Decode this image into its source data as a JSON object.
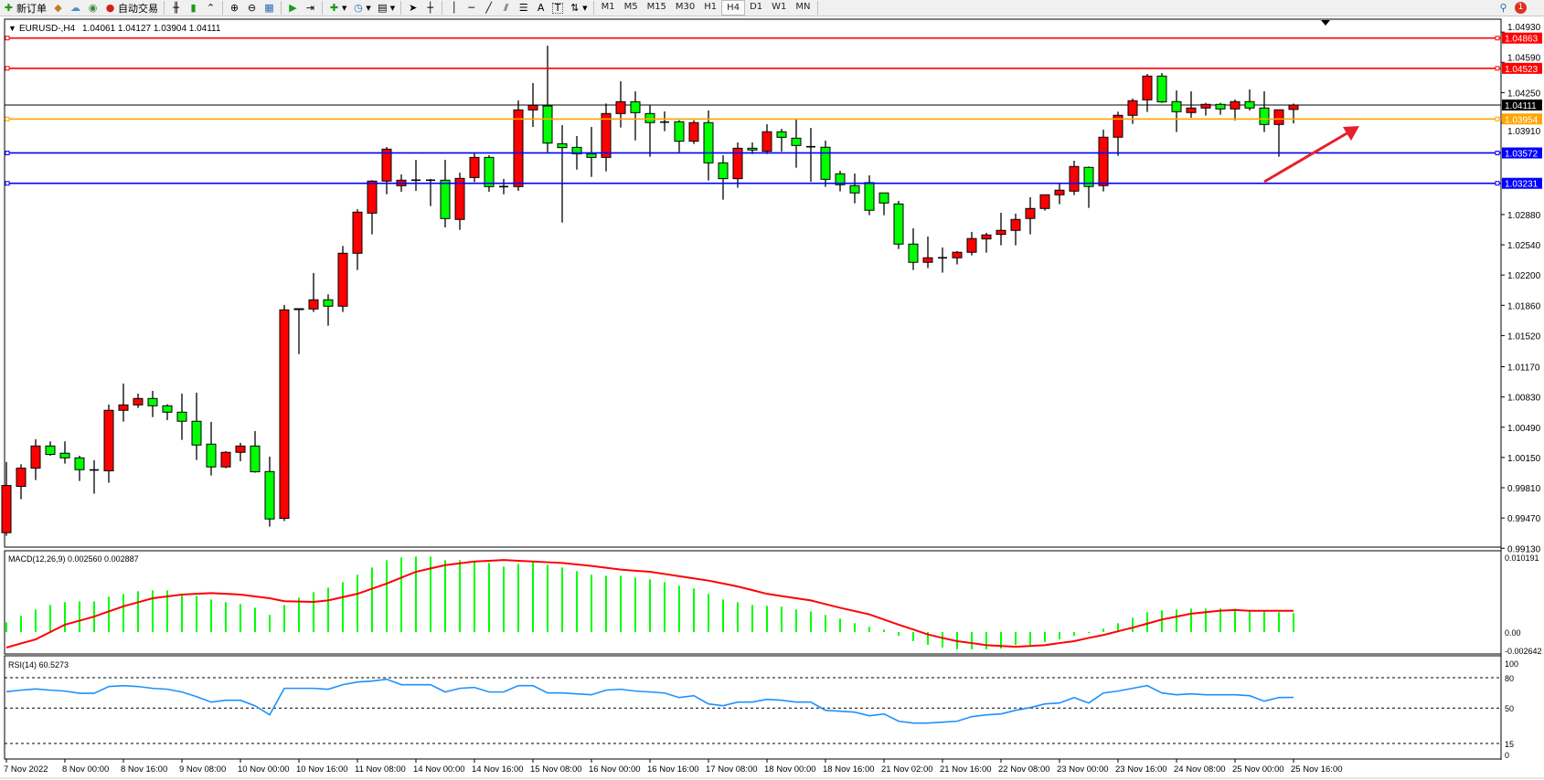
{
  "toolbar": {
    "new_order_label": "新订单",
    "auto_trading_label": "自动交易",
    "timeframes": [
      "M1",
      "M5",
      "M15",
      "M30",
      "H1",
      "H4",
      "D1",
      "W1",
      "MN"
    ],
    "active_timeframe": "H4",
    "notification_count": "1"
  },
  "chart": {
    "title": "EURUSD-,H4",
    "ohlc_text": "1.04061 1.04127 1.03904 1.04111",
    "symbol": "EURUSD-",
    "timeframe": "H4",
    "bull_color": "#ff0000",
    "bear_color": "#00ff00",
    "current_price": "1.04111",
    "price_ticks": [
      "1.04930",
      "1.04590",
      "1.04250",
      "1.03910",
      "1.02880",
      "1.02540",
      "1.02200",
      "1.01860",
      "1.01520",
      "1.01170",
      "1.00830",
      "1.00490",
      "1.00150",
      "0.99810",
      "0.99470",
      "0.99130"
    ],
    "levels": [
      {
        "price": "1.04863",
        "color": "#ff0000"
      },
      {
        "price": "1.04523",
        "color": "#ff0000"
      },
      {
        "price": "1.03954",
        "color": "#ffa500"
      },
      {
        "price": "1.03572",
        "color": "#0000ff"
      },
      {
        "price": "1.03231",
        "color": "#0000ff"
      }
    ],
    "arrow_color": "#e8202a",
    "time_labels": [
      "7 Nov 2022",
      "8 Nov 00:00",
      "8 Nov 16:00",
      "9 Nov 08:00",
      "10 Nov 00:00",
      "10 Nov 16:00",
      "11 Nov 08:00",
      "14 Nov 00:00",
      "14 Nov 16:00",
      "15 Nov 08:00",
      "16 Nov 00:00",
      "16 Nov 16:00",
      "17 Nov 08:00",
      "18 Nov 00:00",
      "18 Nov 16:00",
      "21 Nov 02:00",
      "21 Nov 16:00",
      "22 Nov 08:00",
      "23 Nov 00:00",
      "23 Nov 16:00",
      "24 Nov 08:00",
      "25 Nov 00:00",
      "25 Nov 16:00"
    ]
  },
  "chart_data": {
    "type": "candlestick",
    "fields": [
      "open",
      "high",
      "low",
      "close"
    ],
    "candles": [
      [
        0.99305,
        1.001,
        0.9927,
        0.99835
      ],
      [
        0.99825,
        1.00074,
        0.99681,
        1.0003
      ],
      [
        1.0003,
        1.00355,
        0.99896,
        1.00279
      ],
      [
        1.00279,
        1.00331,
        1.0017,
        1.00184
      ],
      [
        1.00198,
        1.00331,
        1.00081,
        1.00146
      ],
      [
        1.00146,
        1.0017,
        0.99886,
        1.00013
      ],
      [
        1.0001,
        1.00119,
        0.99743,
        1.0001
      ],
      [
        1.0,
        1.00745,
        0.99866,
        1.0068
      ],
      [
        1.0068,
        1.00981,
        1.00553,
        1.00741
      ],
      [
        1.00741,
        1.00868,
        1.00707,
        1.00813
      ],
      [
        1.00813,
        1.00898,
        1.00604,
        1.00731
      ],
      [
        1.00731,
        1.00748,
        1.0057,
        1.00659
      ],
      [
        1.00659,
        1.00868,
        1.00348,
        1.00557
      ],
      [
        1.00557,
        1.00878,
        1.00122,
        1.0029
      ],
      [
        1.003,
        1.0055,
        0.99948,
        1.00044
      ],
      [
        1.00044,
        1.00221,
        1.0003,
        1.00208
      ],
      [
        1.00208,
        1.00314,
        1.00108,
        1.00279
      ],
      [
        1.00279,
        1.00447,
        0.99979,
        0.99989
      ],
      [
        0.99992,
        1.0016,
        0.99373,
        0.99459
      ],
      [
        0.99466,
        1.01864,
        0.99435,
        1.01809
      ],
      [
        1.01822,
        1.01822,
        1.01312,
        1.01816
      ],
      [
        1.01819,
        1.02223,
        1.01785,
        1.01922
      ],
      [
        1.01922,
        1.01983,
        1.01631,
        1.0185
      ],
      [
        1.0185,
        1.02527,
        1.01785,
        1.02445
      ],
      [
        1.02445,
        1.02941,
        1.02257,
        1.02907
      ],
      [
        1.02896,
        1.03266,
        1.02657,
        1.03256
      ],
      [
        1.03256,
        1.03639,
        1.03108,
        1.03615
      ],
      [
        1.03204,
        1.03331,
        1.03136,
        1.03266
      ],
      [
        1.03266,
        1.03495,
        1.03146,
        1.03266
      ],
      [
        1.03266,
        1.0328,
        1.02975,
        1.03266
      ],
      [
        1.03266,
        1.03495,
        1.02736,
        1.02835
      ],
      [
        1.02825,
        1.03351,
        1.02708,
        1.03286
      ],
      [
        1.03296,
        1.0357,
        1.03245,
        1.03522
      ],
      [
        1.03522,
        1.03546,
        1.03136,
        1.03194
      ],
      [
        1.03194,
        1.0328,
        1.03108,
        1.03194
      ],
      [
        1.03194,
        1.04162,
        1.03146,
        1.04056
      ],
      [
        1.04056,
        1.04357,
        1.03864,
        1.04107
      ],
      [
        1.041,
        1.04777,
        1.0358,
        1.03683
      ],
      [
        1.03676,
        1.03885,
        1.0279,
        1.03632
      ],
      [
        1.03635,
        1.03762,
        1.03385,
        1.03563
      ],
      [
        1.03563,
        1.03864,
        1.03303,
        1.03522
      ],
      [
        1.03522,
        1.04128,
        1.03365,
        1.04015
      ],
      [
        1.04015,
        1.04377,
        1.03857,
        1.04148
      ],
      [
        1.04148,
        1.04264,
        1.03714,
        1.04025
      ],
      [
        1.04015,
        1.0411,
        1.0353,
        1.03913
      ],
      [
        1.03919,
        1.04039,
        1.03817,
        1.03919
      ],
      [
        1.03923,
        1.0394,
        1.03581,
        1.03704
      ],
      [
        1.03704,
        1.0394,
        1.03673,
        1.03913
      ],
      [
        1.03913,
        1.04049,
        1.03263,
        1.03461
      ],
      [
        1.03461,
        1.03547,
        1.03047,
        1.03283
      ],
      [
        1.03283,
        1.0369,
        1.03181,
        1.03625
      ],
      [
        1.03625,
        1.0369,
        1.0356,
        1.03605
      ],
      [
        1.03591,
        1.03895,
        1.0356,
        1.0381
      ],
      [
        1.0381,
        1.03844,
        1.03588,
        1.03748
      ],
      [
        1.03738,
        1.03947,
        1.03406,
        1.03656
      ],
      [
        1.03642,
        1.03854,
        1.03249,
        1.03642
      ],
      [
        1.03636,
        1.03711,
        1.03191,
        1.03276
      ],
      [
        1.03338,
        1.03372,
        1.0314,
        1.03215
      ],
      [
        1.03205,
        1.03341,
        1.03006,
        1.03123
      ],
      [
        1.03239,
        1.03321,
        1.02873,
        1.02928
      ],
      [
        1.03123,
        1.03123,
        1.02873,
        1.0301
      ],
      [
        1.02999,
        1.03034,
        1.02493,
        1.02548
      ],
      [
        1.02548,
        1.02726,
        1.02257,
        1.02343
      ],
      [
        1.02343,
        1.02633,
        1.02278,
        1.02394
      ],
      [
        1.02394,
        1.0251,
        1.02227,
        1.02394
      ],
      [
        1.02394,
        1.0247,
        1.02319,
        1.02456
      ],
      [
        1.02456,
        1.02685,
        1.02421,
        1.0261
      ],
      [
        1.02606,
        1.02675,
        1.02452,
        1.02651
      ],
      [
        1.02657,
        1.029,
        1.02534,
        1.02702
      ],
      [
        1.02702,
        1.0289,
        1.02534,
        1.02825
      ],
      [
        1.02836,
        1.03075,
        1.02658,
        1.02948
      ],
      [
        1.02948,
        1.03102,
        1.02925,
        1.03102
      ],
      [
        1.03102,
        1.03229,
        1.02996,
        1.03154
      ],
      [
        1.03143,
        1.03485,
        1.03099,
        1.0342
      ],
      [
        1.0341,
        1.0342,
        1.02955,
        1.03195
      ],
      [
        1.03205,
        1.03834,
        1.0314,
        1.03749
      ],
      [
        1.03749,
        1.04036,
        1.0354,
        1.03995
      ],
      [
        1.03995,
        1.04183,
        1.03899,
        1.04159
      ],
      [
        1.04169,
        1.0446,
        1.04033,
        1.04436
      ],
      [
        1.04436,
        1.0447,
        1.04135,
        1.04146
      ],
      [
        1.04149,
        1.04275,
        1.03807,
        1.04036
      ],
      [
        1.04026,
        1.04265,
        1.03968,
        1.04077
      ],
      [
        1.04077,
        1.04135,
        1.03992,
        1.04118
      ],
      [
        1.04118,
        1.04135,
        1.04002,
        1.04067
      ],
      [
        1.04067,
        1.04173,
        1.03937,
        1.04149
      ],
      [
        1.04149,
        1.04286,
        1.0405,
        1.04077
      ],
      [
        1.04077,
        1.04265,
        1.03807,
        1.03892
      ],
      [
        1.03892,
        1.04057,
        1.0353,
        1.04057
      ],
      [
        1.04061,
        1.04127,
        1.03904,
        1.04111
      ]
    ],
    "ylim": [
      0.9913,
      1.0493
    ],
    "macd": {
      "label": "MACD(12,26,9) 0.002560 0.002887",
      "scale_labels": [
        "0.010191",
        "0.00",
        "-0.002642"
      ],
      "ylim": [
        -0.002642,
        0.010191
      ],
      "hist_color": "#00ff00",
      "signal_color": "#ff0000",
      "histogram": [
        0.00132,
        0.00219,
        0.00306,
        0.00368,
        0.00406,
        0.00418,
        0.00418,
        0.0048,
        0.00518,
        0.00555,
        0.00567,
        0.00567,
        0.00518,
        0.00493,
        0.00443,
        0.00406,
        0.00381,
        0.00331,
        0.00232,
        0.00368,
        0.00468,
        0.00542,
        0.00604,
        0.00679,
        0.00778,
        0.00878,
        0.00977,
        0.01014,
        0.01027,
        0.01027,
        0.00977,
        0.00977,
        0.00965,
        0.0094,
        0.0089,
        0.00927,
        0.00952,
        0.00915,
        0.00878,
        0.00828,
        0.00778,
        0.00766,
        0.00766,
        0.00741,
        0.00716,
        0.00679,
        0.00629,
        0.00592,
        0.00518,
        0.00443,
        0.00406,
        0.00368,
        0.00356,
        0.00344,
        0.00306,
        0.00282,
        0.00232,
        0.00182,
        0.0012,
        0.0007,
        0.00033,
        -0.0005,
        -0.00124,
        -0.00174,
        -0.00211,
        -0.00236,
        -0.00236,
        -0.00236,
        -0.00224,
        -0.00174,
        -0.00174,
        -0.00137,
        -0.001,
        -0.0005,
        -0.00012,
        0.00046,
        0.0012,
        0.00195,
        0.00269,
        0.00294,
        0.00306,
        0.00319,
        0.00319,
        0.00319,
        0.00319,
        0.00294,
        0.00294,
        0.00269,
        0.00256
      ],
      "signal": [
        -0.00211,
        -0.00155,
        -0.001,
        0.0,
        0.001,
        0.00155,
        0.0021,
        0.0028,
        0.0035,
        0.00405,
        0.0046,
        0.00485,
        0.0051,
        0.0052,
        0.0053,
        0.0052,
        0.0051,
        0.00485,
        0.0046,
        0.0042,
        0.00415,
        0.0041,
        0.0043,
        0.00475,
        0.0052,
        0.0059,
        0.0066,
        0.0074,
        0.0082,
        0.00865,
        0.0091,
        0.00935,
        0.0096,
        0.0097,
        0.0098,
        0.0097,
        0.0096,
        0.0095,
        0.0094,
        0.0092,
        0.009,
        0.00875,
        0.0085,
        0.00835,
        0.0082,
        0.0079,
        0.0076,
        0.0073,
        0.007,
        0.0066,
        0.0062,
        0.0057,
        0.0052,
        0.0049,
        0.0046,
        0.0043,
        0.0038,
        0.0033,
        0.00285,
        0.0024,
        0.0017,
        0.001,
        0.00035,
        -0.00033,
        -0.0008,
        -0.00124,
        -0.0015,
        -0.00178,
        -0.0019,
        -0.002,
        -0.0019,
        -0.00178,
        -0.0015,
        -0.00124,
        -0.0008,
        -0.0004,
        0.0001,
        0.0006,
        0.00115,
        0.0017,
        0.0021,
        0.0025,
        0.0027,
        0.0029,
        0.003,
        0.00289,
        0.00289,
        0.00289,
        0.002887
      ]
    },
    "rsi": {
      "label": "RSI(14) 60.5273",
      "scale_labels": [
        "100",
        "80",
        "50",
        "15",
        "0"
      ],
      "levels": [
        80,
        50,
        15
      ],
      "ylim": [
        0,
        100
      ],
      "color": "#1e90ff",
      "values": [
        66.2,
        67.7,
        68.9,
        67.7,
        66.8,
        64.6,
        64.6,
        71.3,
        72.2,
        71.3,
        69.5,
        68.6,
        65.9,
        61.3,
        55.9,
        57.7,
        57.7,
        52.3,
        43.3,
        69.5,
        69.5,
        69.5,
        68.6,
        73.1,
        75.8,
        76.7,
        78.5,
        73.1,
        73.1,
        73.1,
        65.9,
        69.5,
        70.4,
        65.9,
        65.9,
        72.2,
        72.2,
        64.9,
        64.9,
        64.0,
        63.1,
        67.7,
        68.6,
        66.8,
        65.9,
        64.9,
        60.4,
        62.2,
        54.1,
        52.3,
        55.9,
        55.9,
        58.6,
        57.7,
        55.9,
        55.9,
        47.8,
        46.9,
        46.0,
        42.4,
        44.2,
        37.0,
        35.2,
        35.2,
        36.1,
        37.0,
        41.5,
        43.3,
        44.2,
        47.8,
        50.5,
        54.1,
        55.0,
        60.4,
        55.0,
        64.9,
        66.8,
        69.5,
        72.2,
        64.9,
        63.1,
        64.0,
        63.1,
        63.1,
        63.1,
        62.2,
        56.8,
        60.4,
        60.5273
      ]
    }
  }
}
